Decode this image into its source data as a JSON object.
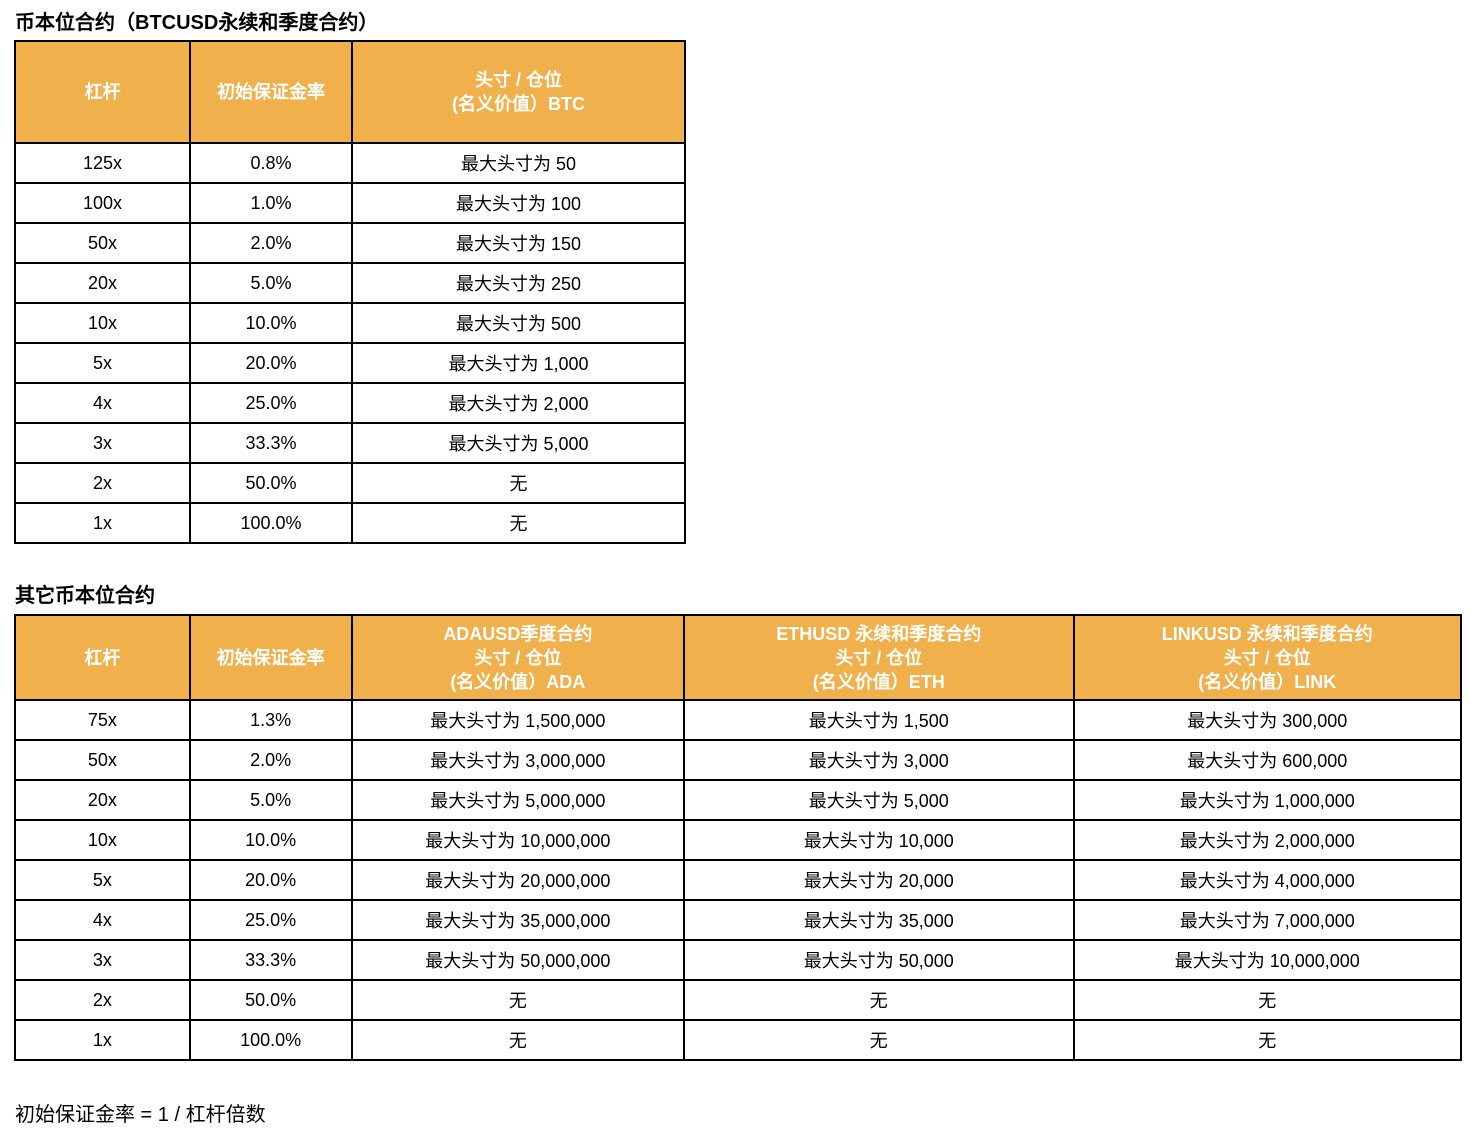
{
  "colors": {
    "header_bg": "#F0B04B",
    "header_text": "#FFFFFF",
    "border": "#000000",
    "body_text": "#000000",
    "background": "#FFFFFF"
  },
  "section1": {
    "title": "币本位合约（BTCUSD永续和季度合约）",
    "table": {
      "headers": [
        "杠杆",
        "初始保证金率",
        "头寸 / 仓位\n(名义价值）BTC"
      ],
      "rows": [
        [
          "125x",
          "0.8%",
          "最大头寸为 50"
        ],
        [
          "100x",
          "1.0%",
          "最大头寸为 100"
        ],
        [
          "50x",
          "2.0%",
          "最大头寸为 150"
        ],
        [
          "20x",
          "5.0%",
          "最大头寸为 250"
        ],
        [
          "10x",
          "10.0%",
          "最大头寸为 500"
        ],
        [
          "5x",
          "20.0%",
          "最大头寸为 1,000"
        ],
        [
          "4x",
          "25.0%",
          "最大头寸为 2,000"
        ],
        [
          "3x",
          "33.3%",
          "最大头寸为 5,000"
        ],
        [
          "2x",
          "50.0%",
          "无"
        ],
        [
          "1x",
          "100.0%",
          "无"
        ]
      ]
    }
  },
  "section2": {
    "title": "其它币本位合约",
    "table": {
      "headers": [
        "杠杆",
        "初始保证金率",
        "ADAUSD季度合约\n头寸 / 仓位\n(名义价值）ADA",
        "ETHUSD 永续和季度合约\n头寸 / 仓位\n(名义价值）ETH",
        "LINKUSD 永续和季度合约\n头寸 / 仓位\n(名义价值）LINK"
      ],
      "rows": [
        [
          "75x",
          "1.3%",
          "最大头寸为 1,500,000",
          "最大头寸为 1,500",
          "最大头寸为 300,000"
        ],
        [
          "50x",
          "2.0%",
          "最大头寸为 3,000,000",
          "最大头寸为 3,000",
          "最大头寸为 600,000"
        ],
        [
          "20x",
          "5.0%",
          "最大头寸为 5,000,000",
          "最大头寸为 5,000",
          "最大头寸为 1,000,000"
        ],
        [
          "10x",
          "10.0%",
          "最大头寸为 10,000,000",
          "最大头寸为 10,000",
          "最大头寸为 2,000,000"
        ],
        [
          "5x",
          "20.0%",
          "最大头寸为 20,000,000",
          "最大头寸为 20,000",
          "最大头寸为 4,000,000"
        ],
        [
          "4x",
          "25.0%",
          "最大头寸为 35,000,000",
          "最大头寸为 35,000",
          "最大头寸为 7,000,000"
        ],
        [
          "3x",
          "33.3%",
          "最大头寸为 50,000,000",
          "最大头寸为 50,000",
          "最大头寸为 10,000,000"
        ],
        [
          "2x",
          "50.0%",
          "无",
          "无",
          "无"
        ],
        [
          "1x",
          "100.0%",
          "无",
          "无",
          "无"
        ]
      ]
    }
  },
  "footer": {
    "note": "初始保证金率 = 1 / 杠杆倍数"
  }
}
